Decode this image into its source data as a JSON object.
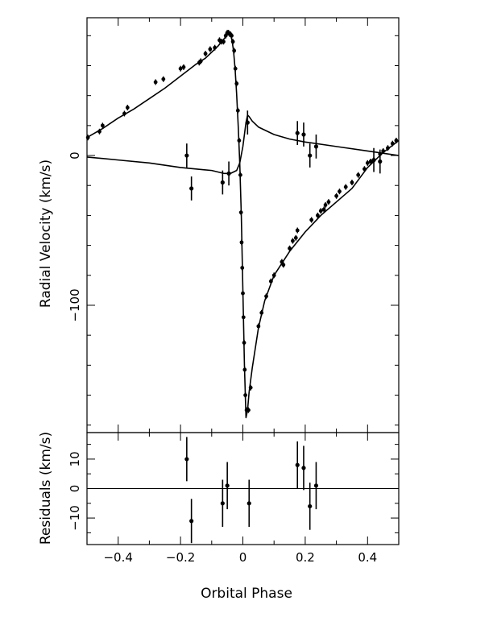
{
  "chart_data": [
    {
      "type": "scatter",
      "panel": "top",
      "ylabel": "Radial Velocity (km/s)",
      "xlim": [
        -0.5,
        0.5
      ],
      "ylim": [
        -185,
        92
      ],
      "x_ticks": [
        -0.4,
        -0.2,
        0.0,
        0.2,
        0.4
      ],
      "y_ticks": [
        0,
        -100
      ],
      "y_tick_labels": [
        "0",
        "−100"
      ],
      "series": [
        {
          "role": "primary-model-curve",
          "points": [
            [
              -0.5,
              12
            ],
            [
              -0.45,
              18
            ],
            [
              -0.4,
              25
            ],
            [
              -0.35,
              31
            ],
            [
              -0.3,
              38
            ],
            [
              -0.25,
              45
            ],
            [
              -0.2,
              53
            ],
            [
              -0.15,
              61
            ],
            [
              -0.12,
              65
            ],
            [
              -0.1,
              69
            ],
            [
              -0.08,
              73
            ],
            [
              -0.06,
              78
            ],
            [
              -0.05,
              81
            ],
            [
              -0.045,
              82
            ],
            [
              -0.04,
              81
            ],
            [
              -0.035,
              77
            ],
            [
              -0.03,
              70
            ],
            [
              -0.025,
              58
            ],
            [
              -0.02,
              41
            ],
            [
              -0.015,
              20
            ],
            [
              -0.01,
              -5
            ],
            [
              -0.005,
              -40
            ],
            [
              0.0,
              -90
            ],
            [
              0.005,
              -140
            ],
            [
              0.01,
              -175
            ],
            [
              0.015,
              -170
            ],
            [
              0.02,
              -158
            ],
            [
              0.03,
              -142
            ],
            [
              0.05,
              -115
            ],
            [
              0.07,
              -97
            ],
            [
              0.1,
              -80
            ],
            [
              0.15,
              -64
            ],
            [
              0.2,
              -51
            ],
            [
              0.25,
              -40
            ],
            [
              0.3,
              -31
            ],
            [
              0.35,
              -22
            ],
            [
              0.4,
              -8
            ],
            [
              0.45,
              2
            ],
            [
              0.5,
              10
            ]
          ]
        },
        {
          "role": "secondary-model-curve",
          "points": [
            [
              -0.5,
              -1
            ],
            [
              -0.4,
              -3
            ],
            [
              -0.3,
              -5
            ],
            [
              -0.2,
              -8
            ],
            [
              -0.15,
              -9
            ],
            [
              -0.1,
              -10
            ],
            [
              -0.06,
              -12
            ],
            [
              -0.04,
              -12
            ],
            [
              -0.02,
              -10
            ],
            [
              -0.01,
              -5
            ],
            [
              0.0,
              6
            ],
            [
              0.01,
              22
            ],
            [
              0.015,
              27
            ],
            [
              0.02,
              26
            ],
            [
              0.03,
              23
            ],
            [
              0.05,
              19
            ],
            [
              0.1,
              14
            ],
            [
              0.15,
              11
            ],
            [
              0.2,
              9
            ],
            [
              0.3,
              6
            ],
            [
              0.4,
              3
            ],
            [
              0.5,
              0
            ]
          ]
        },
        {
          "role": "primary-observations",
          "points": [
            [
              -0.497,
              12
            ],
            [
              -0.46,
              16
            ],
            [
              -0.45,
              20
            ],
            [
              -0.38,
              28
            ],
            [
              -0.37,
              32
            ],
            [
              -0.28,
              49
            ],
            [
              -0.255,
              51
            ],
            [
              -0.2,
              58
            ],
            [
              -0.19,
              59
            ],
            [
              -0.14,
              62
            ],
            [
              -0.135,
              63
            ],
            [
              -0.12,
              68
            ],
            [
              -0.105,
              71
            ],
            [
              -0.09,
              72
            ],
            [
              -0.075,
              77
            ],
            [
              -0.068,
              76
            ],
            [
              -0.062,
              76
            ],
            [
              -0.055,
              80
            ],
            [
              -0.05,
              82
            ],
            [
              -0.046,
              82
            ],
            [
              -0.042,
              81
            ],
            [
              -0.04,
              81
            ],
            [
              -0.036,
              80
            ],
            [
              -0.032,
              76
            ],
            [
              -0.028,
              70
            ],
            [
              -0.024,
              58
            ],
            [
              -0.02,
              48
            ],
            [
              -0.016,
              30
            ],
            [
              -0.012,
              10
            ],
            [
              -0.008,
              -13
            ],
            [
              -0.006,
              -38
            ],
            [
              -0.004,
              -58
            ],
            [
              -0.002,
              -75
            ],
            [
              0.0,
              -92
            ],
            [
              0.002,
              -108
            ],
            [
              0.004,
              -125
            ],
            [
              0.006,
              -143
            ],
            [
              0.008,
              -160
            ],
            [
              0.012,
              -170
            ],
            [
              0.018,
              -170
            ],
            [
              0.025,
              -155
            ],
            [
              0.05,
              -114
            ],
            [
              0.06,
              -105
            ],
            [
              0.075,
              -94
            ],
            [
              0.09,
              -84
            ],
            [
              0.1,
              -80
            ],
            [
              0.125,
              -71
            ],
            [
              0.13,
              -73
            ],
            [
              0.15,
              -62
            ],
            [
              0.16,
              -57
            ],
            [
              0.17,
              -55
            ],
            [
              0.175,
              -50
            ],
            [
              0.22,
              -43
            ],
            [
              0.24,
              -40
            ],
            [
              0.25,
              -37
            ],
            [
              0.26,
              -36
            ],
            [
              0.265,
              -33
            ],
            [
              0.275,
              -31
            ],
            [
              0.3,
              -27
            ],
            [
              0.31,
              -24
            ],
            [
              0.33,
              -21
            ],
            [
              0.35,
              -18
            ],
            [
              0.37,
              -13
            ],
            [
              0.39,
              -9
            ],
            [
              0.4,
              -5
            ],
            [
              0.41,
              -4
            ],
            [
              0.42,
              -3
            ],
            [
              0.44,
              1
            ],
            [
              0.45,
              3
            ],
            [
              0.465,
              5
            ],
            [
              0.48,
              8
            ],
            [
              0.492,
              10
            ]
          ]
        },
        {
          "role": "secondary-observations",
          "points": [
            [
              -0.18,
              0
            ],
            [
              -0.165,
              -22
            ],
            [
              -0.065,
              -18
            ],
            [
              -0.045,
              -12
            ],
            [
              0.015,
              22
            ],
            [
              0.175,
              15
            ],
            [
              0.195,
              14
            ],
            [
              0.215,
              0
            ],
            [
              0.235,
              6
            ],
            [
              0.42,
              -3
            ],
            [
              0.44,
              -4
            ]
          ]
        }
      ]
    },
    {
      "type": "scatter",
      "panel": "bottom",
      "ylabel": "Residuals (km/s)",
      "xlabel": "Orbital Phase",
      "xlim": [
        -0.5,
        0.5
      ],
      "ylim": [
        -19,
        19
      ],
      "x_ticks": [
        -0.4,
        -0.2,
        0.0,
        0.2,
        0.4
      ],
      "x_tick_labels": [
        "−0.4",
        "−0.2",
        "0",
        "0.2",
        "0.4"
      ],
      "y_ticks": [
        10,
        0,
        -10
      ],
      "y_tick_labels": [
        "10",
        "0",
        "−10"
      ],
      "zero_line": 0,
      "series": [
        {
          "role": "residuals",
          "points": [
            [
              -0.18,
              10,
              7.5
            ],
            [
              -0.165,
              -11,
              7.5
            ],
            [
              -0.065,
              -5,
              8
            ],
            [
              -0.05,
              1,
              8
            ],
            [
              0.02,
              -5,
              8
            ],
            [
              0.175,
              8,
              8
            ],
            [
              0.195,
              7,
              7.5
            ],
            [
              0.215,
              -6,
              8
            ],
            [
              0.235,
              1,
              8
            ]
          ]
        }
      ]
    }
  ]
}
